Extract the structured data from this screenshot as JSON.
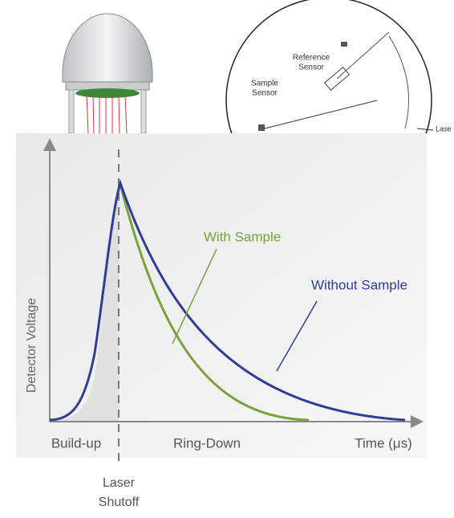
{
  "illustration": {
    "reference_sensor": [
      "Reference",
      "Sensor"
    ],
    "sample_sensor": [
      "Sample",
      "Sensor"
    ],
    "laser": "Lase"
  },
  "diagram": {
    "curves": [
      "With Sample",
      "Without Sample"
    ],
    "y_label": "Detector Voltage",
    "x_labels": [
      "Build-up",
      "Ring-Down",
      "Time (μs)"
    ],
    "marker": [
      "Laser",
      "Shutoff"
    ]
  }
}
